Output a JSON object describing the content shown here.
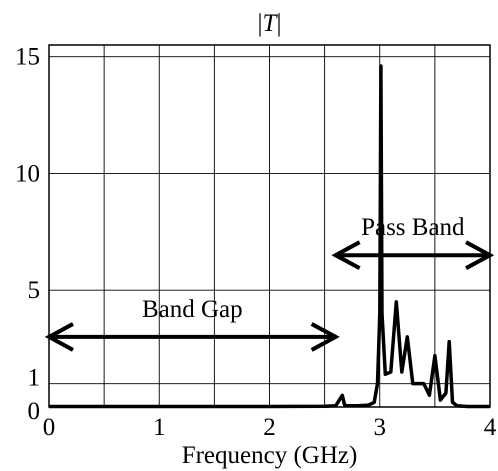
{
  "chart_data": {
    "type": "line",
    "title": "|T|",
    "xlabel": "Frequency (GHz)",
    "ylabel": "",
    "xlim": [
      0,
      4
    ],
    "ylim": [
      0,
      15.5
    ],
    "x_ticks": [
      "0",
      "1",
      "2",
      "3",
      "4"
    ],
    "y_ticks": [
      "0",
      "1",
      "5",
      "10",
      "15"
    ],
    "grid": true,
    "series": [
      {
        "x": [
          0.0,
          0.5,
          1.0,
          1.5,
          2.0,
          2.5,
          2.6,
          2.66,
          2.68,
          2.7,
          2.8,
          2.9,
          2.95,
          2.98,
          3.0,
          3.01,
          3.02,
          3.05,
          3.1,
          3.15,
          3.2,
          3.25,
          3.3,
          3.35,
          3.4,
          3.45,
          3.5,
          3.55,
          3.6,
          3.63,
          3.66,
          3.7,
          3.8,
          4.0
        ],
        "y": [
          0.02,
          0.02,
          0.02,
          0.02,
          0.02,
          0.03,
          0.05,
          0.5,
          0.1,
          0.05,
          0.05,
          0.08,
          0.2,
          1.0,
          4.0,
          14.6,
          4.0,
          1.4,
          1.5,
          4.5,
          1.5,
          3.0,
          1.0,
          1.0,
          1.0,
          0.5,
          2.2,
          0.3,
          0.6,
          2.8,
          0.2,
          0.05,
          0.02,
          0.02
        ]
      }
    ],
    "annotations": [
      {
        "text": "Band Gap",
        "arrow_from_x": 0.0,
        "arrow_to_x": 2.6,
        "y": 3.0
      },
      {
        "text": "Pass Band",
        "arrow_from_x": 2.6,
        "arrow_to_x": 4.0,
        "y": 6.5
      }
    ]
  }
}
